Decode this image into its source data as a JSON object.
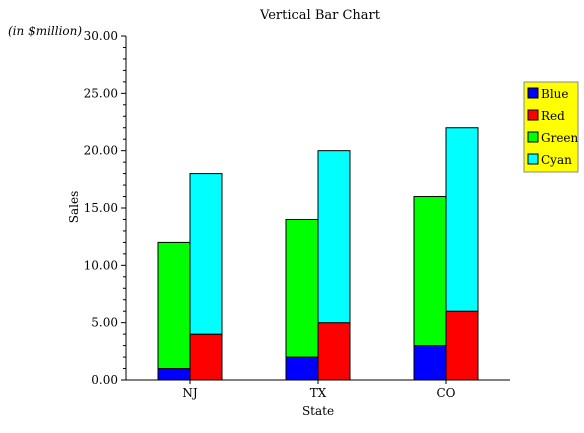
{
  "chart_data": {
    "type": "bar",
    "stacked_groups": true,
    "title": "Vertical Bar Chart",
    "units_label": "(in $million)",
    "xlabel": "State",
    "ylabel": "Sales",
    "ylim": [
      0,
      30
    ],
    "ytick_step": 5,
    "ytick_labels": [
      "0.00",
      "5.00",
      "10.00",
      "15.00",
      "20.00",
      "25.00",
      "30.00"
    ],
    "categories": [
      "NJ",
      "TX",
      "CO"
    ],
    "series": [
      {
        "name": "Blue",
        "color": "#0000ff",
        "stack": 0,
        "values": [
          1,
          2,
          3
        ]
      },
      {
        "name": "Red",
        "color": "#ff0000",
        "stack": 1,
        "values": [
          4,
          5,
          6
        ]
      },
      {
        "name": "Green",
        "color": "#00ff00",
        "stack": 0,
        "values": [
          11,
          12,
          13
        ]
      },
      {
        "name": "Cyan",
        "color": "#00ffff",
        "stack": 1,
        "values": [
          14,
          15,
          16
        ]
      }
    ],
    "grid": false,
    "legend": {
      "position": "right",
      "background": "#ffff00"
    }
  }
}
